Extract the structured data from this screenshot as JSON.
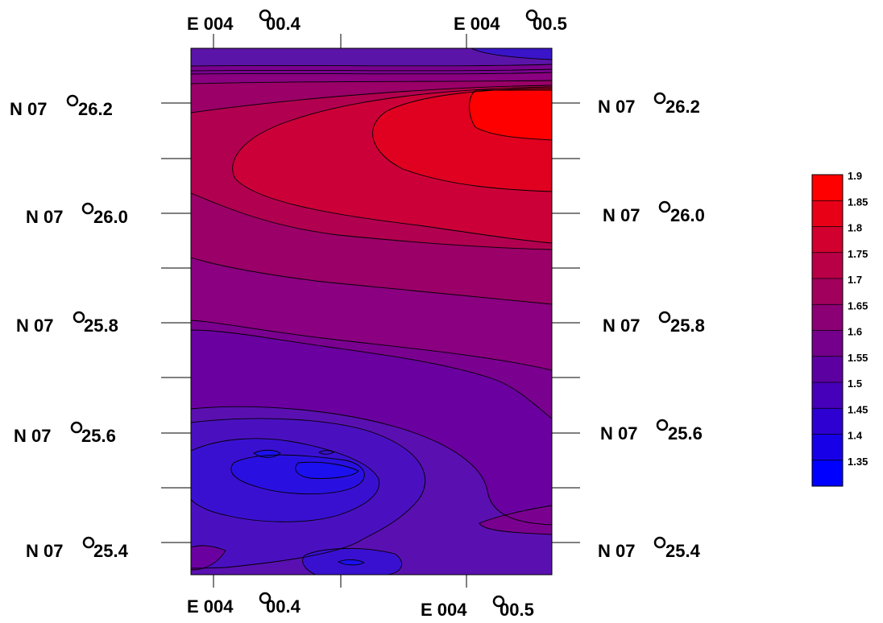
{
  "chart_data": {
    "type": "heatmap",
    "title": "",
    "x_axis": {
      "label": "",
      "tick_labels": [
        "E 004",
        "00.4",
        "E 004",
        "00.5"
      ],
      "ticks": [
        {
          "deg": "E 004",
          "min": "00.4"
        },
        {
          "deg": "E 004",
          "min": "00.5"
        }
      ]
    },
    "y_axis": {
      "label": "",
      "tick_labels": [
        "N 07",
        "26.2",
        "N 07",
        "26.0",
        "N 07",
        "25.8",
        "N 07",
        "25.6",
        "N 07",
        "25.4"
      ],
      "ticks": [
        {
          "deg": "N 07",
          "min": "26.2"
        },
        {
          "deg": "N 07",
          "min": "26.0"
        },
        {
          "deg": "N 07",
          "min": "25.8"
        },
        {
          "deg": "N 07",
          "min": "25.6"
        },
        {
          "deg": "N 07",
          "min": "25.4"
        }
      ]
    },
    "color_scale": {
      "min_color": "#0000ff",
      "max_color": "#ff0000",
      "levels": [
        1.35,
        1.4,
        1.45,
        1.5,
        1.55,
        1.6,
        1.65,
        1.7,
        1.75,
        1.8,
        1.85,
        1.9
      ],
      "tick_labels": [
        "1.35",
        "1.4",
        "1.45",
        "1.5",
        "1.55",
        "1.6",
        "1.65",
        "1.7",
        "1.75",
        "1.8",
        "1.85",
        "1.9"
      ]
    },
    "grid": false,
    "legend": "right",
    "contours": [
      {
        "value": 1.92,
        "note": "maximum in the north-east corner"
      },
      {
        "value": 1.87
      },
      {
        "value": 1.82
      },
      {
        "value": 1.77
      },
      {
        "value": 1.72
      },
      {
        "value": 1.67
      },
      {
        "value": 1.62
      },
      {
        "value": 1.57
      },
      {
        "value": 1.52
      },
      {
        "value": 1.47
      },
      {
        "value": 1.42,
        "note": "minima in the south-west"
      }
    ]
  }
}
